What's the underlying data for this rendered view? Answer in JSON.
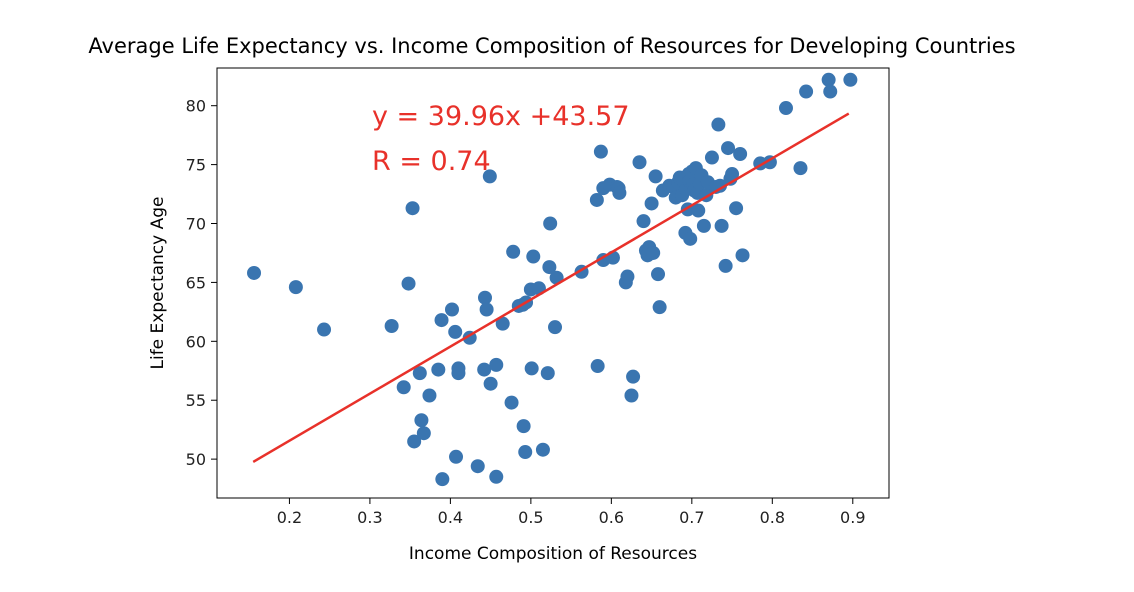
{
  "chart_data": {
    "type": "scatter",
    "title": "Average Life Expectancy vs. Income Composition of Resources for Developing Countries",
    "xlabel": "Income Composition of Resources",
    "ylabel": "Life Expectancy Age",
    "xlim": [
      0.11,
      0.945
    ],
    "ylim": [
      46.7,
      83.2
    ],
    "xticks": [
      0.2,
      0.3,
      0.4,
      0.5,
      0.6,
      0.7,
      0.8,
      0.9
    ],
    "xtick_labels": [
      "0.2",
      "0.3",
      "0.4",
      "0.5",
      "0.6",
      "0.7",
      "0.8",
      "0.9"
    ],
    "yticks": [
      50,
      55,
      60,
      65,
      70,
      75,
      80
    ],
    "ytick_labels": [
      "50",
      "55",
      "60",
      "65",
      "70",
      "75",
      "80"
    ],
    "grid": false,
    "point_color": "#3a75b0",
    "line_color": "#e8312a",
    "regression": {
      "slope": 39.96,
      "intercept": 43.57,
      "x_range": [
        0.155,
        0.895
      ],
      "equation_label": "y = 39.96x +43.57",
      "r_label": "R = 0.74",
      "label_color": "#e8312a"
    },
    "points": [
      [
        0.156,
        65.8
      ],
      [
        0.208,
        64.6
      ],
      [
        0.243,
        61.0
      ],
      [
        0.327,
        61.3
      ],
      [
        0.342,
        56.1
      ],
      [
        0.348,
        64.9
      ],
      [
        0.353,
        71.3
      ],
      [
        0.355,
        51.5
      ],
      [
        0.362,
        57.3
      ],
      [
        0.364,
        53.3
      ],
      [
        0.367,
        52.2
      ],
      [
        0.374,
        55.4
      ],
      [
        0.385,
        57.6
      ],
      [
        0.389,
        61.8
      ],
      [
        0.39,
        48.3
      ],
      [
        0.402,
        62.7
      ],
      [
        0.406,
        60.8
      ],
      [
        0.407,
        50.2
      ],
      [
        0.41,
        57.3
      ],
      [
        0.41,
        57.7
      ],
      [
        0.424,
        60.3
      ],
      [
        0.434,
        49.4
      ],
      [
        0.442,
        57.6
      ],
      [
        0.443,
        63.7
      ],
      [
        0.445,
        62.7
      ],
      [
        0.449,
        74.0
      ],
      [
        0.45,
        56.4
      ],
      [
        0.457,
        58.0
      ],
      [
        0.457,
        48.5
      ],
      [
        0.465,
        61.5
      ],
      [
        0.476,
        54.8
      ],
      [
        0.478,
        67.6
      ],
      [
        0.485,
        63.0
      ],
      [
        0.49,
        63.1
      ],
      [
        0.491,
        52.8
      ],
      [
        0.493,
        50.6
      ],
      [
        0.494,
        63.3
      ],
      [
        0.5,
        64.4
      ],
      [
        0.501,
        57.7
      ],
      [
        0.503,
        67.2
      ],
      [
        0.51,
        64.5
      ],
      [
        0.515,
        50.8
      ],
      [
        0.521,
        57.3
      ],
      [
        0.523,
        66.3
      ],
      [
        0.524,
        70.0
      ],
      [
        0.53,
        61.2
      ],
      [
        0.532,
        65.4
      ],
      [
        0.563,
        65.9
      ],
      [
        0.582,
        72.0
      ],
      [
        0.583,
        57.9
      ],
      [
        0.587,
        76.1
      ],
      [
        0.59,
        73.0
      ],
      [
        0.59,
        66.9
      ],
      [
        0.598,
        73.3
      ],
      [
        0.602,
        67.1
      ],
      [
        0.607,
        73.1
      ],
      [
        0.609,
        73.0
      ],
      [
        0.61,
        72.6
      ],
      [
        0.618,
        65.0
      ],
      [
        0.62,
        65.5
      ],
      [
        0.625,
        55.4
      ],
      [
        0.627,
        57.0
      ],
      [
        0.635,
        75.2
      ],
      [
        0.64,
        70.2
      ],
      [
        0.643,
        67.7
      ],
      [
        0.645,
        67.3
      ],
      [
        0.647,
        68.0
      ],
      [
        0.65,
        71.7
      ],
      [
        0.652,
        67.5
      ],
      [
        0.655,
        74.0
      ],
      [
        0.658,
        65.7
      ],
      [
        0.66,
        62.9
      ],
      [
        0.664,
        72.8
      ],
      [
        0.672,
        73.2
      ],
      [
        0.677,
        73.1
      ],
      [
        0.68,
        72.2
      ],
      [
        0.683,
        73.5
      ],
      [
        0.685,
        73.9
      ],
      [
        0.688,
        72.4
      ],
      [
        0.69,
        73.6
      ],
      [
        0.692,
        69.2
      ],
      [
        0.693,
        72.9
      ],
      [
        0.695,
        71.2
      ],
      [
        0.696,
        74.2
      ],
      [
        0.697,
        73.6
      ],
      [
        0.698,
        68.7
      ],
      [
        0.699,
        73.0
      ],
      [
        0.7,
        74.4
      ],
      [
        0.702,
        73.3
      ],
      [
        0.703,
        72.8
      ],
      [
        0.705,
        74.7
      ],
      [
        0.707,
        72.6
      ],
      [
        0.708,
        71.1
      ],
      [
        0.71,
        73.4
      ],
      [
        0.712,
        74.1
      ],
      [
        0.715,
        69.8
      ],
      [
        0.718,
        72.4
      ],
      [
        0.72,
        73.5
      ],
      [
        0.725,
        75.6
      ],
      [
        0.73,
        73.1
      ],
      [
        0.733,
        78.4
      ],
      [
        0.735,
        73.2
      ],
      [
        0.737,
        69.8
      ],
      [
        0.742,
        66.4
      ],
      [
        0.745,
        76.4
      ],
      [
        0.748,
        73.8
      ],
      [
        0.75,
        74.2
      ],
      [
        0.755,
        71.3
      ],
      [
        0.76,
        75.9
      ],
      [
        0.763,
        67.3
      ],
      [
        0.785,
        75.1
      ],
      [
        0.797,
        75.2
      ],
      [
        0.817,
        79.8
      ],
      [
        0.835,
        74.7
      ],
      [
        0.842,
        81.2
      ],
      [
        0.87,
        82.2
      ],
      [
        0.872,
        81.2
      ],
      [
        0.897,
        82.2
      ]
    ]
  }
}
